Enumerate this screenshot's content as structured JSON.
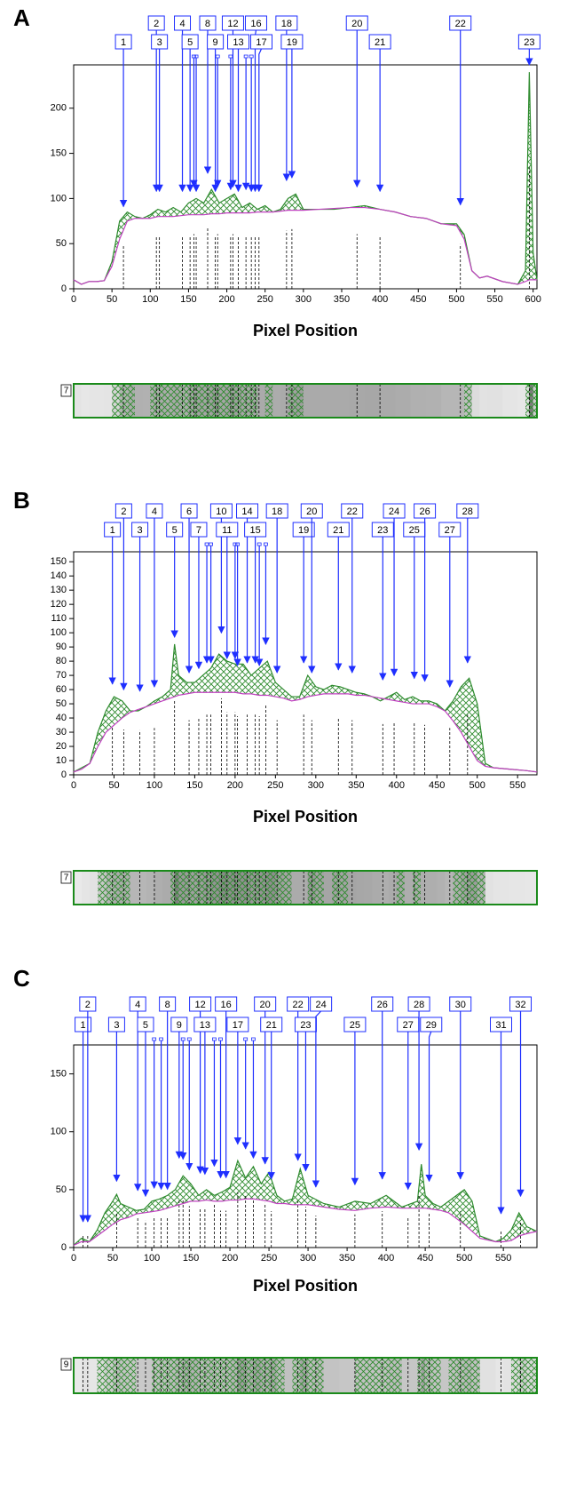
{
  "chart_data": [
    {
      "type": "line",
      "panel": "A",
      "x_label": "Pixel Position",
      "lane": "7",
      "xlim": [
        0,
        605
      ],
      "ylim": [
        0,
        248
      ],
      "xticks": [
        0,
        50,
        100,
        150,
        200,
        250,
        300,
        350,
        400,
        450,
        500,
        550,
        600
      ],
      "yticks": [
        0,
        50,
        100,
        150,
        200
      ],
      "x": [
        0,
        10,
        20,
        30,
        40,
        50,
        60,
        70,
        80,
        90,
        100,
        110,
        120,
        130,
        140,
        150,
        160,
        170,
        180,
        190,
        200,
        210,
        220,
        230,
        240,
        250,
        260,
        270,
        280,
        290,
        300,
        320,
        340,
        360,
        380,
        400,
        420,
        440,
        460,
        480,
        500,
        510,
        520,
        530,
        540,
        560,
        580,
        590,
        595,
        600,
        605
      ],
      "series": [
        {
          "name": "profile",
          "color": "#2e8b2e",
          "values": [
            10,
            5,
            8,
            8,
            9,
            30,
            75,
            85,
            80,
            78,
            82,
            88,
            85,
            90,
            85,
            95,
            100,
            95,
            110,
            95,
            100,
            105,
            90,
            95,
            88,
            92,
            85,
            88,
            100,
            105,
            88,
            88,
            88,
            90,
            92,
            88,
            85,
            80,
            78,
            72,
            72,
            60,
            20,
            12,
            14,
            8,
            5,
            20,
            240,
            40,
            10
          ]
        },
        {
          "name": "baseline",
          "color": "#c040c0",
          "values": [
            10,
            5,
            8,
            8,
            9,
            25,
            55,
            75,
            78,
            78,
            78,
            80,
            80,
            80,
            81,
            82,
            82,
            82,
            83,
            83,
            84,
            84,
            84,
            84,
            85,
            85,
            85,
            86,
            87,
            87,
            87,
            88,
            89,
            90,
            90,
            88,
            85,
            80,
            78,
            72,
            70,
            55,
            20,
            12,
            14,
            8,
            5,
            8,
            10,
            10,
            10
          ]
        }
      ],
      "peaks": {
        "labels": [
          "1",
          "2",
          "3",
          "4",
          "5",
          null,
          null,
          "8",
          "9",
          null,
          null,
          "12",
          "13",
          null,
          null,
          "16",
          "17",
          "18",
          "19",
          "20",
          "21",
          "22",
          "23"
        ],
        "x": [
          65,
          108,
          112,
          142,
          152,
          157,
          160,
          175,
          185,
          188,
          205,
          208,
          215,
          225,
          232,
          237,
          242,
          278,
          285,
          370,
          400,
          505,
          595
        ],
        "y": [
          88,
          105,
          105,
          105,
          105,
          110,
          105,
          125,
          105,
          110,
          107,
          110,
          105,
          107,
          105,
          105,
          105,
          117,
          120,
          110,
          105,
          90,
          245
        ]
      }
    },
    {
      "type": "line",
      "panel": "B",
      "x_label": "Pixel Position",
      "lane": "7",
      "xlim": [
        0,
        574
      ],
      "ylim": [
        0,
        157
      ],
      "xticks": [
        0,
        50,
        100,
        150,
        200,
        250,
        300,
        350,
        400,
        450,
        500,
        550
      ],
      "yticks": [
        0,
        10,
        20,
        30,
        40,
        50,
        60,
        70,
        80,
        90,
        100,
        110,
        120,
        130,
        140,
        150
      ],
      "x": [
        0,
        10,
        20,
        30,
        40,
        50,
        60,
        70,
        80,
        90,
        100,
        110,
        120,
        125,
        130,
        140,
        150,
        160,
        170,
        180,
        190,
        200,
        210,
        220,
        230,
        240,
        250,
        260,
        270,
        280,
        290,
        300,
        310,
        320,
        330,
        340,
        350,
        360,
        370,
        380,
        390,
        400,
        410,
        420,
        430,
        440,
        450,
        460,
        470,
        480,
        490,
        500,
        510,
        520,
        540,
        560,
        574
      ],
      "series": [
        {
          "name": "profile",
          "color": "#2e8b2e",
          "values": [
            2,
            5,
            8,
            30,
            45,
            55,
            52,
            45,
            45,
            48,
            52,
            55,
            60,
            92,
            70,
            65,
            65,
            70,
            75,
            85,
            80,
            78,
            78,
            70,
            75,
            80,
            65,
            60,
            55,
            55,
            70,
            62,
            60,
            63,
            62,
            60,
            58,
            57,
            55,
            52,
            55,
            58,
            53,
            55,
            52,
            52,
            50,
            45,
            52,
            62,
            68,
            50,
            8,
            5,
            4,
            3,
            2
          ]
        },
        {
          "name": "baseline",
          "color": "#c040c0",
          "values": [
            2,
            4,
            8,
            20,
            30,
            35,
            40,
            44,
            46,
            48,
            50,
            52,
            54,
            55,
            56,
            57,
            58,
            58,
            58,
            58,
            58,
            58,
            57,
            57,
            56,
            56,
            55,
            54,
            52,
            53,
            55,
            56,
            57,
            57,
            57,
            57,
            56,
            56,
            55,
            54,
            53,
            52,
            51,
            50,
            50,
            50,
            48,
            45,
            38,
            30,
            20,
            10,
            6,
            5,
            4,
            3,
            2
          ]
        }
      ],
      "peaks": {
        "labels": [
          "1",
          "2",
          "3",
          "4",
          "5",
          "6",
          "7",
          null,
          null,
          "10",
          "11",
          null,
          null,
          "14",
          "15",
          null,
          null,
          "18",
          "19",
          "20",
          "21",
          "22",
          "23",
          "24",
          "25",
          "26",
          "27",
          "28"
        ],
        "x": [
          48,
          62,
          82,
          100,
          125,
          143,
          155,
          165,
          170,
          183,
          190,
          200,
          203,
          215,
          225,
          230,
          238,
          252,
          285,
          295,
          328,
          345,
          383,
          397,
          422,
          435,
          466,
          488
        ],
        "y": [
          62,
          58,
          57,
          60,
          95,
          70,
          73,
          77,
          77,
          98,
          80,
          80,
          75,
          77,
          77,
          75,
          90,
          70,
          77,
          70,
          72,
          70,
          65,
          68,
          66,
          64,
          60,
          77
        ]
      }
    },
    {
      "type": "line",
      "panel": "C",
      "x_label": "Pixel Position",
      "lane": "9",
      "xlim": [
        0,
        593
      ],
      "ylim": [
        0,
        175
      ],
      "xticks": [
        0,
        50,
        100,
        150,
        200,
        250,
        300,
        350,
        400,
        450,
        500,
        550
      ],
      "yticks": [
        0,
        50,
        100,
        150
      ],
      "x": [
        0,
        10,
        20,
        30,
        40,
        50,
        55,
        60,
        70,
        80,
        90,
        100,
        110,
        120,
        130,
        140,
        150,
        160,
        170,
        180,
        190,
        200,
        210,
        220,
        230,
        240,
        250,
        260,
        270,
        280,
        290,
        300,
        320,
        340,
        360,
        380,
        400,
        420,
        440,
        445,
        450,
        460,
        470,
        480,
        490,
        500,
        510,
        520,
        540,
        550,
        560,
        570,
        580,
        593
      ],
      "series": [
        {
          "name": "profile",
          "color": "#2e8b2e",
          "values": [
            2,
            8,
            5,
            15,
            30,
            40,
            46,
            38,
            35,
            32,
            33,
            40,
            42,
            45,
            50,
            62,
            55,
            45,
            50,
            45,
            48,
            52,
            75,
            60,
            70,
            55,
            65,
            45,
            40,
            42,
            68,
            45,
            38,
            35,
            40,
            38,
            45,
            35,
            40,
            72,
            45,
            38,
            35,
            40,
            45,
            50,
            40,
            10,
            5,
            8,
            15,
            30,
            18,
            14
          ]
        },
        {
          "name": "baseline",
          "color": "#c040c0",
          "values": [
            2,
            5,
            5,
            10,
            15,
            20,
            22,
            24,
            26,
            29,
            30,
            31,
            32,
            34,
            36,
            38,
            40,
            40,
            41,
            40,
            40,
            41,
            41,
            42,
            42,
            41,
            40,
            38,
            38,
            37,
            37,
            37,
            35,
            33,
            32,
            34,
            35,
            34,
            34,
            34,
            34,
            33,
            32,
            30,
            25,
            20,
            14,
            8,
            5,
            5,
            6,
            10,
            12,
            14
          ]
        }
      ],
      "peaks": {
        "labels": [
          "1",
          "2",
          "3",
          "4",
          "5",
          null,
          null,
          "8",
          "9",
          null,
          null,
          "12",
          "13",
          null,
          null,
          "16",
          "17",
          null,
          null,
          "20",
          "21",
          "22",
          "23",
          "24",
          "25",
          "26",
          "27",
          "28",
          "29",
          "30",
          "31",
          "32"
        ],
        "x": [
          12,
          18,
          55,
          82,
          92,
          103,
          112,
          120,
          135,
          140,
          148,
          162,
          168,
          180,
          188,
          195,
          210,
          220,
          230,
          245,
          253,
          287,
          297,
          310,
          360,
          395,
          428,
          442,
          455,
          495,
          547,
          572
        ],
        "y": [
          20,
          20,
          55,
          47,
          42,
          49,
          48,
          48,
          75,
          74,
          65,
          62,
          61,
          68,
          58,
          58,
          87,
          83,
          75,
          70,
          57,
          73,
          64,
          50,
          52,
          57,
          48,
          82,
          55,
          57,
          27,
          42
        ]
      }
    }
  ]
}
